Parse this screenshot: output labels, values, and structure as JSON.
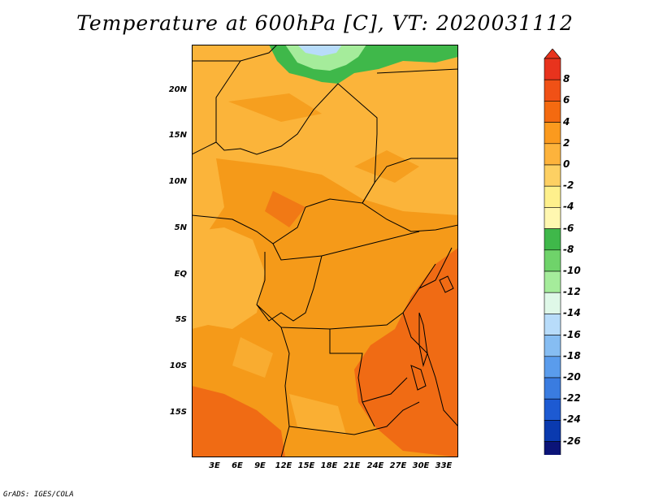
{
  "title": "Temperature at 600hPa [C], VT: 2020031112",
  "footer": "GrADS: IGES/COLA",
  "map": {
    "lat_labels": [
      "20N",
      "15N",
      "10N",
      "5N",
      "EQ",
      "5S",
      "10S",
      "15S"
    ],
    "lon_labels": [
      "3E",
      "6E",
      "9E",
      "12E",
      "15E",
      "18E",
      "21E",
      "24E",
      "27E",
      "30E",
      "33E"
    ]
  },
  "colorbar": {
    "levels": [
      "8",
      "6",
      "4",
      "2",
      "0",
      "-2",
      "-4",
      "-6",
      "-8",
      "-10",
      "-12",
      "-14",
      "-16",
      "-18",
      "-20",
      "-22",
      "-24",
      "-26"
    ],
    "colors": [
      "#e8331d",
      "#f05116",
      "#f46a10",
      "#fb9a1e",
      "#fdb33c",
      "#fdd063",
      "#fef08c",
      "#fff7b0",
      "#3fb84a",
      "#6fd36a",
      "#a5ec9b",
      "#dff8e8",
      "#b8dcfa",
      "#86bdf2",
      "#5a9cec",
      "#3a7ce0",
      "#1d5ad2",
      "#0a3aaf",
      "#0b1478"
    ],
    "extend_low_color": "#ddddf5"
  },
  "colors": {
    "warm_orange": "#f59a19",
    "light_orange": "#fbb43a",
    "dark_orange": "#f06b14",
    "pale": "#fdd063",
    "green": "#3fb84a",
    "light_green": "#a5ec9b",
    "light_blue": "#b8dcfa"
  }
}
